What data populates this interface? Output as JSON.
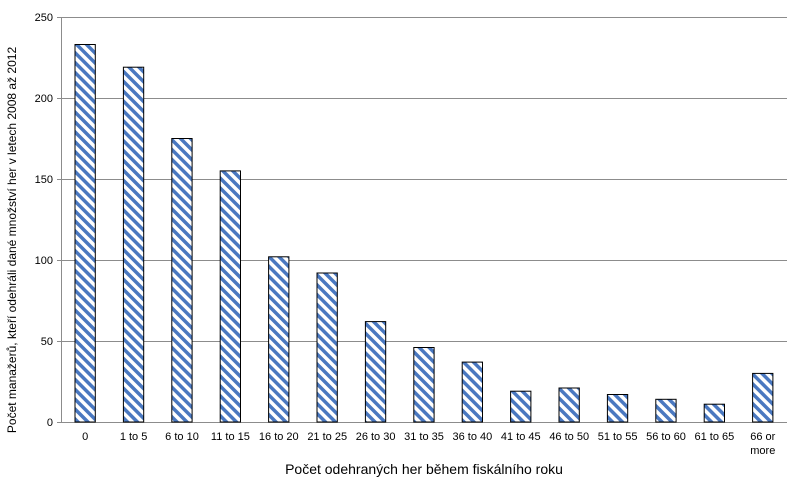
{
  "chart_data": {
    "type": "bar",
    "title": "",
    "xlabel": "Počet odehraných her během fiskálního roku",
    "ylabel": "Počet manažerů, kteří odehráli dané množství her v letech 2008 až 2012",
    "categories": [
      "0",
      "1 to 5",
      "6 to 10",
      "11 to 15",
      "16 to 20",
      "21 to 25",
      "26 to 30",
      "31 to 35",
      "36 to 40",
      "41 to 45",
      "46 to 50",
      "51 to 55",
      "56 to 60",
      "61 to 65",
      "66 or more"
    ],
    "values": [
      233,
      219,
      175,
      155,
      102,
      92,
      62,
      46,
      37,
      19,
      21,
      17,
      14,
      11,
      30
    ],
    "ylim": [
      0,
      250
    ],
    "yticks": [
      0,
      50,
      100,
      150,
      200,
      250
    ],
    "grid": true,
    "legend": "none",
    "colors": {
      "stripe": "#4a78c0",
      "stripe_bg": "#ffffff",
      "bar_border": "#000000",
      "grid": "#8c8c8c",
      "axis": "#8c8c8c"
    }
  }
}
